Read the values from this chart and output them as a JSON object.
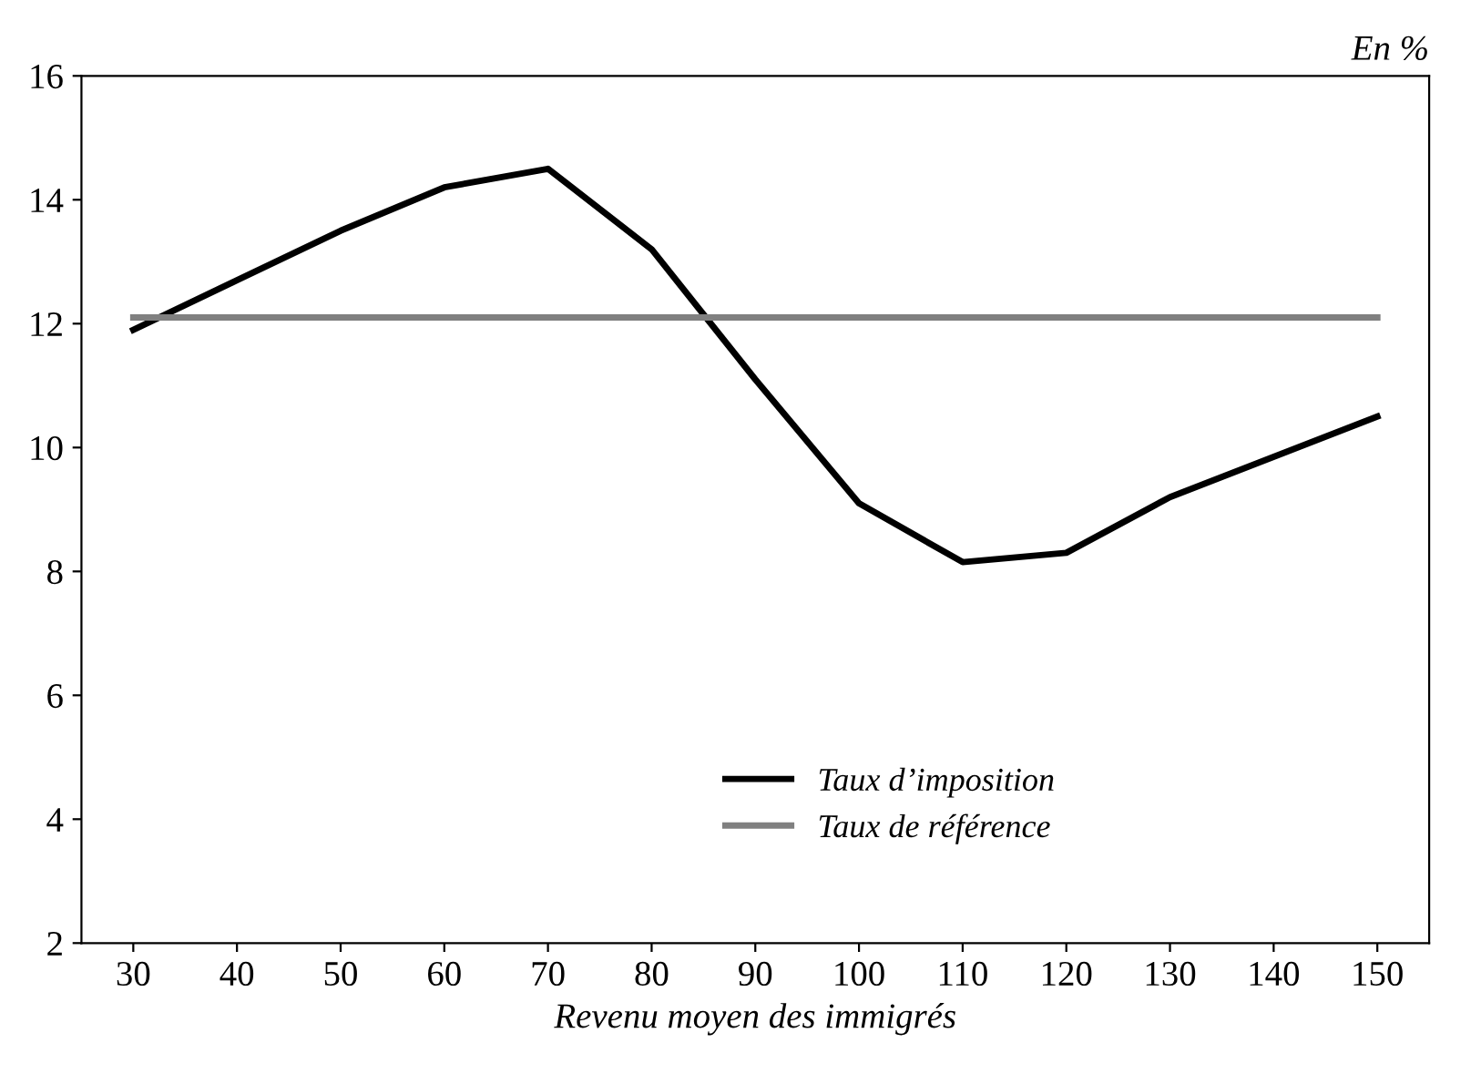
{
  "chart_data": {
    "type": "line",
    "xlabel": "Revenu moyen des immigrés",
    "annotations": [
      "En %"
    ],
    "x": [
      30,
      40,
      50,
      60,
      70,
      80,
      90,
      100,
      110,
      120,
      130,
      140,
      150
    ],
    "series": [
      {
        "name": "Taux d’imposition",
        "color": "#000000",
        "values": [
          11.9,
          12.7,
          13.5,
          14.2,
          14.5,
          13.2,
          11.1,
          9.1,
          8.15,
          8.3,
          9.2,
          9.85,
          10.5
        ]
      },
      {
        "name": "Taux de référence",
        "color": "#808080",
        "values": [
          12.1,
          12.1,
          12.1,
          12.1,
          12.1,
          12.1,
          12.1,
          12.1,
          12.1,
          12.1,
          12.1,
          12.1,
          12.1
        ]
      }
    ],
    "xlim": [
      25,
      155
    ],
    "xticks": [
      30,
      40,
      50,
      60,
      70,
      80,
      90,
      100,
      110,
      120,
      130,
      140,
      150
    ],
    "ylim": [
      2,
      16
    ],
    "yticks": [
      2,
      4,
      6,
      8,
      10,
      12,
      14,
      16
    ],
    "grid": false,
    "legend": "bottom",
    "marker": "none",
    "line_style": "solid"
  }
}
